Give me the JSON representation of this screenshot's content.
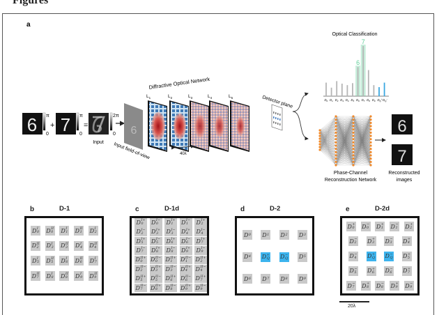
{
  "heading": "Figures",
  "panel_a": {
    "label": "a",
    "input_label": "Input",
    "pi": "π",
    "zero": "0",
    "two_pi": "2π",
    "plus": "+",
    "equals": "=",
    "fov_label": "Input field-of-view",
    "network_title": "Diffractive Optical Network",
    "layers": [
      "L1",
      "L2",
      "L3",
      "L4",
      "L5"
    ],
    "spacing_label": "40λ",
    "detector_label": "Detector plane",
    "digits": [
      "6",
      "7"
    ],
    "classification": {
      "title": "Optical Classification",
      "peak_labels": {
        "6": "6",
        "7": "7"
      },
      "highlight_color": "#5fcf98",
      "quad_color": "#3aa7e0"
    },
    "recon_network_label_1": "Phase-Channel",
    "recon_network_label_2": "Reconstruction Network",
    "recon_images_label_1": "Reconstructed",
    "recon_images_label_2": "images",
    "node_color": "#f08a2c"
  },
  "chart_data": {
    "type": "bar",
    "title": "Optical Classification",
    "categories": [
      {
        "base": "D",
        "sub": "0",
        "sup": ""
      },
      {
        "base": "D",
        "sub": "1",
        "sup": ""
      },
      {
        "base": "D",
        "sub": "2",
        "sup": ""
      },
      {
        "base": "D",
        "sub": "3",
        "sup": ""
      },
      {
        "base": "D",
        "sub": "4",
        "sup": ""
      },
      {
        "base": "D",
        "sub": "5",
        "sup": ""
      },
      {
        "base": "D",
        "sub": "6",
        "sup": ""
      },
      {
        "base": "D",
        "sub": "7",
        "sup": ""
      },
      {
        "base": "D",
        "sub": "8",
        "sup": ""
      },
      {
        "base": "D",
        "sub": "9",
        "sup": ""
      },
      {
        "base": "D",
        "sub": "Q",
        "sup": "+"
      },
      {
        "base": "D",
        "sub": "Q",
        "sup": "−"
      }
    ],
    "values": [
      27,
      17,
      30,
      25,
      22,
      26,
      58,
      100,
      52,
      22,
      18,
      27
    ],
    "highlighted": [
      6,
      7
    ],
    "quadrature": [
      10,
      11
    ],
    "ylim": [
      0,
      100
    ],
    "xlabel": "",
    "ylabel": ""
  },
  "panels": [
    {
      "label": "b",
      "title": "D-1",
      "layout": "d1",
      "cells": [
        [
          [
            "D",
            "0",
            "I"
          ],
          [
            "D",
            "0",
            "II"
          ],
          [
            "D",
            "1",
            "I"
          ],
          [
            "D",
            "1",
            "II"
          ],
          [
            "D",
            "2",
            "I"
          ]
        ],
        [
          [
            "D",
            "2",
            "II"
          ],
          [
            "D",
            "3",
            "I"
          ],
          [
            "D",
            "3",
            "II"
          ],
          [
            "D",
            "4",
            "I"
          ],
          [
            "D",
            "4",
            "II"
          ]
        ],
        [
          [
            "D",
            "5",
            "I"
          ],
          [
            "D",
            "5",
            "II"
          ],
          [
            "D",
            "6",
            "I"
          ],
          [
            "D",
            "6",
            "II"
          ],
          [
            "D",
            "7",
            "I"
          ]
        ],
        [
          [
            "D",
            "7",
            "II"
          ],
          [
            "D",
            "8",
            "I"
          ],
          [
            "D",
            "8",
            "II"
          ],
          [
            "D",
            "9",
            "I"
          ],
          [
            "D",
            "9",
            "II"
          ]
        ]
      ]
    },
    {
      "label": "c",
      "title": "D-1d",
      "layout": "d1d",
      "cells": [
        [
          [
            "D",
            "0",
            "I+"
          ],
          [
            "D",
            "0",
            "I−"
          ],
          [
            "D",
            "1",
            "I+"
          ],
          [
            "D",
            "1",
            "I−"
          ],
          [
            "D",
            "2",
            "I+"
          ]
        ],
        [
          [
            "D",
            "2",
            "I−"
          ],
          [
            "D",
            "3",
            "I+"
          ],
          [
            "D",
            "3",
            "I−"
          ],
          [
            "D",
            "4",
            "I+"
          ],
          [
            "D",
            "4",
            "I−"
          ]
        ],
        [
          [
            "D",
            "5",
            "I+"
          ],
          [
            "D",
            "5",
            "I−"
          ],
          [
            "D",
            "6",
            "I+"
          ],
          [
            "D",
            "6",
            "I−"
          ],
          [
            "D",
            "7",
            "I+"
          ]
        ],
        [
          [
            "D",
            "7",
            "I−"
          ],
          [
            "D",
            "8",
            "I+"
          ],
          [
            "D",
            "8",
            "I−"
          ],
          [
            "D",
            "9",
            "I+"
          ],
          [
            "D",
            "9",
            "I−"
          ]
        ],
        [
          [
            "D",
            "0",
            "II+"
          ],
          [
            "D",
            "0",
            "II−"
          ],
          [
            "D",
            "1",
            "II+"
          ],
          [
            "D",
            "1",
            "II−"
          ],
          [
            "D",
            "2",
            "II+"
          ]
        ],
        [
          [
            "D",
            "2",
            "II−"
          ],
          [
            "D",
            "3",
            "II+"
          ],
          [
            "D",
            "3",
            "II−"
          ],
          [
            "D",
            "4",
            "II+"
          ],
          [
            "D",
            "4",
            "II−"
          ]
        ],
        [
          [
            "D",
            "5",
            "II+"
          ],
          [
            "D",
            "5",
            "II−"
          ],
          [
            "D",
            "6",
            "II+"
          ],
          [
            "D",
            "6",
            "II−"
          ],
          [
            "D",
            "7",
            "II+"
          ]
        ],
        [
          [
            "D",
            "7",
            "II−"
          ],
          [
            "D",
            "8",
            "II+"
          ],
          [
            "D",
            "8",
            "II−"
          ],
          [
            "D",
            "9",
            "II+"
          ],
          [
            "D",
            "9",
            "II−"
          ]
        ]
      ]
    },
    {
      "label": "d",
      "title": "D-2",
      "layout": "d2",
      "cells": [
        [
          [
            "D",
            "0",
            ""
          ],
          [
            "D",
            "1",
            ""
          ],
          [
            "D",
            "2",
            ""
          ],
          [
            "D",
            "3",
            ""
          ]
        ],
        [
          [
            "D",
            "4",
            ""
          ],
          [
            "D",
            "Q",
            "+",
            true
          ],
          [
            "D",
            "Q",
            "−",
            true
          ],
          [
            "D",
            "5",
            ""
          ]
        ],
        [
          [
            "D",
            "6",
            ""
          ],
          [
            "D",
            "7",
            ""
          ],
          [
            "D",
            "8",
            ""
          ],
          [
            "D",
            "9",
            ""
          ]
        ]
      ]
    },
    {
      "label": "e",
      "title": "D-2d",
      "layout": "d2d",
      "cells": [
        [
          [
            "D",
            "0",
            "+"
          ],
          [
            "D",
            "0",
            "−"
          ],
          [
            "D",
            "1",
            "+"
          ],
          [
            "D",
            "1",
            "−"
          ],
          [
            "D",
            "2",
            "+"
          ]
        ],
        [
          [
            "D",
            "2",
            "−"
          ],
          [
            "D",
            "3",
            "+"
          ],
          [
            "D",
            "3",
            "−"
          ],
          [
            "D",
            "4",
            "+"
          ]
        ],
        [
          [
            "D",
            "4",
            "−"
          ],
          [
            "D",
            "Q",
            "+",
            true
          ],
          [
            "D",
            "Q",
            "−",
            true
          ],
          [
            "D",
            "5",
            "+"
          ]
        ],
        [
          [
            "D",
            "5",
            "−"
          ],
          [
            "D",
            "6",
            "+"
          ],
          [
            "D",
            "6",
            "−"
          ],
          [
            "D",
            "7",
            "+"
          ]
        ],
        [
          [
            "D",
            "7",
            "−"
          ],
          [
            "D",
            "8",
            "+"
          ],
          [
            "D",
            "8",
            "−"
          ],
          [
            "D",
            "9",
            "+"
          ],
          [
            "D",
            "9",
            "−"
          ]
        ]
      ]
    }
  ],
  "scale_bar_label": "20λ",
  "colors": {
    "cell": "#c9c9c9",
    "highlight": "#3db4ee"
  }
}
